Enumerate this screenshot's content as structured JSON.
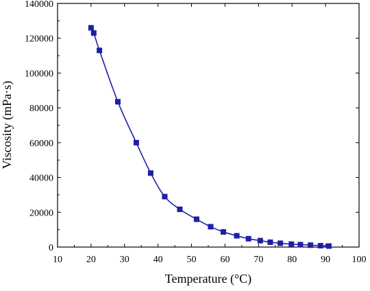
{
  "chart_data": {
    "type": "line",
    "title": "",
    "xlabel": "Temperature (°C)",
    "ylabel": "Viscosity (mPa·s)",
    "xlim": [
      10,
      100
    ],
    "ylim": [
      0,
      140000
    ],
    "xticks": [
      10,
      20,
      30,
      40,
      50,
      60,
      70,
      80,
      90,
      100
    ],
    "yticks": [
      0,
      20000,
      40000,
      60000,
      80000,
      100000,
      120000,
      140000
    ],
    "grid": false,
    "legend": "none",
    "series": [
      {
        "marker": "square",
        "line": "smooth",
        "color": "#1f1fa6",
        "x": [
          20,
          20.8,
          22.5,
          28,
          33.5,
          37.8,
          42,
          46.5,
          51.5,
          55.7,
          59.5,
          63.5,
          67,
          70.5,
          73.5,
          76.5,
          79.8,
          82.5,
          85.5,
          88.5,
          91
        ],
        "y": [
          126000,
          123000,
          113000,
          83500,
          60000,
          42500,
          29000,
          21700,
          16000,
          11700,
          8700,
          6500,
          4800,
          3700,
          2800,
          2200,
          1700,
          1400,
          1100,
          800,
          600
        ]
      }
    ]
  }
}
